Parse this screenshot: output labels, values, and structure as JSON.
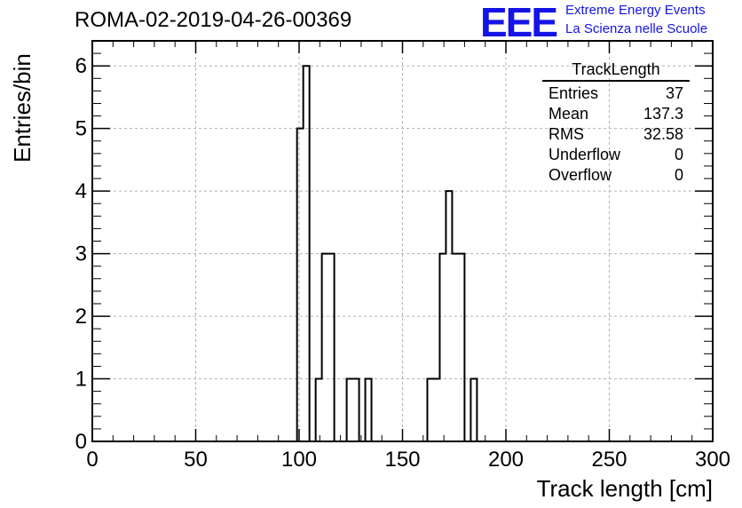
{
  "header": {
    "run_title": "ROMA-02-2019-04-26-00369",
    "logo_text": "EEE",
    "tagline_1": "Extreme Energy Events",
    "tagline_2": "La Scienza nelle Scuole",
    "brand_color": "#1414e6"
  },
  "stats_box": {
    "title": "TrackLength",
    "rows": [
      {
        "label": "Entries",
        "value": "37"
      },
      {
        "label": "Mean",
        "value": "137.3"
      },
      {
        "label": "RMS",
        "value": "32.58"
      },
      {
        "label": "Underflow",
        "value": "0"
      },
      {
        "label": "Overflow",
        "value": "0"
      }
    ]
  },
  "chart_data": {
    "type": "bar",
    "histogram": "step",
    "xlabel": "Track length [cm]",
    "ylabel": "Entries/bin",
    "xlim": [
      0,
      300
    ],
    "ylim": [
      0,
      6.4
    ],
    "grid": true,
    "bin_width": 3,
    "x_ticks": [
      0,
      50,
      100,
      150,
      200,
      250,
      300
    ],
    "y_ticks": [
      0,
      1,
      2,
      3,
      4,
      5,
      6
    ],
    "bins": [
      {
        "x0": 99,
        "x1": 102,
        "count": 5
      },
      {
        "x0": 102,
        "x1": 105,
        "count": 6
      },
      {
        "x0": 105,
        "x1": 108,
        "count": 0
      },
      {
        "x0": 108,
        "x1": 111,
        "count": 1
      },
      {
        "x0": 111,
        "x1": 114,
        "count": 3
      },
      {
        "x0": 114,
        "x1": 117,
        "count": 3
      },
      {
        "x0": 117,
        "x1": 120,
        "count": 0
      },
      {
        "x0": 120,
        "x1": 123,
        "count": 0
      },
      {
        "x0": 123,
        "x1": 126,
        "count": 1
      },
      {
        "x0": 126,
        "x1": 129,
        "count": 1
      },
      {
        "x0": 129,
        "x1": 132,
        "count": 0
      },
      {
        "x0": 132,
        "x1": 135,
        "count": 1
      },
      {
        "x0": 135,
        "x1": 138,
        "count": 0
      },
      {
        "x0": 138,
        "x1": 141,
        "count": 0
      },
      {
        "x0": 141,
        "x1": 144,
        "count": 0
      },
      {
        "x0": 144,
        "x1": 147,
        "count": 0
      },
      {
        "x0": 147,
        "x1": 150,
        "count": 0
      },
      {
        "x0": 150,
        "x1": 153,
        "count": 0
      },
      {
        "x0": 153,
        "x1": 156,
        "count": 0
      },
      {
        "x0": 156,
        "x1": 159,
        "count": 0
      },
      {
        "x0": 159,
        "x1": 162,
        "count": 0
      },
      {
        "x0": 162,
        "x1": 165,
        "count": 1
      },
      {
        "x0": 165,
        "x1": 168,
        "count": 1
      },
      {
        "x0": 168,
        "x1": 171,
        "count": 3
      },
      {
        "x0": 171,
        "x1": 174,
        "count": 4
      },
      {
        "x0": 174,
        "x1": 177,
        "count": 3
      },
      {
        "x0": 177,
        "x1": 180,
        "count": 3
      },
      {
        "x0": 180,
        "x1": 183,
        "count": 0
      },
      {
        "x0": 183,
        "x1": 186,
        "count": 1
      }
    ]
  }
}
